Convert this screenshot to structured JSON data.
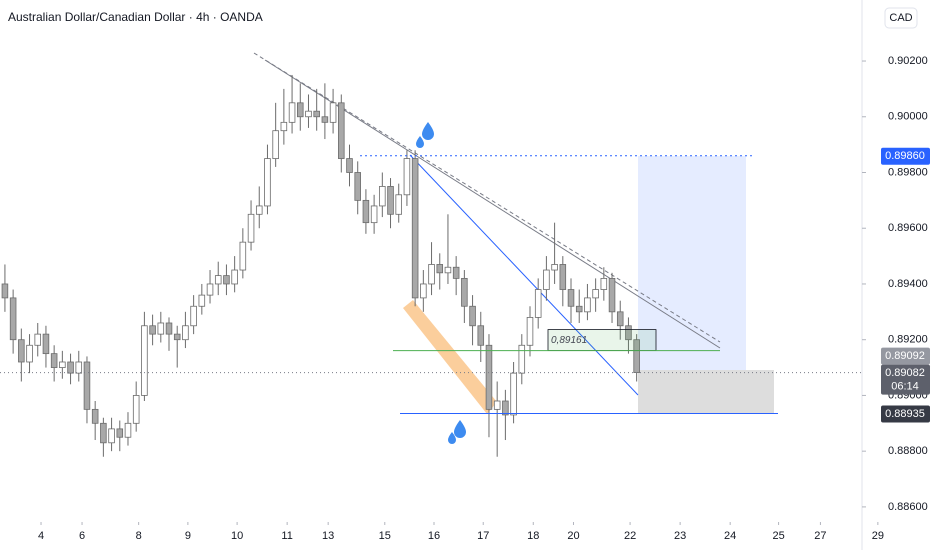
{
  "chart_data": {
    "type": "candlestick",
    "title": "Australian Dollar/Canadian Dollar · 4h · OANDA",
    "currency": "CAD",
    "up_color": "#ffffff",
    "down_color": "#a8a8a8",
    "wick_color": "#6b6b6b",
    "grid": false,
    "ylim": [
      0.88553,
      0.90419
    ],
    "yticks": [
      {
        "value": 0.902,
        "label": "0.90200"
      },
      {
        "value": 0.9,
        "label": "0.90000"
      },
      {
        "value": 0.898,
        "label": "0.89800"
      },
      {
        "value": 0.896,
        "label": "0.89600"
      },
      {
        "value": 0.894,
        "label": "0.89400"
      },
      {
        "value": 0.892,
        "label": "0.89200"
      },
      {
        "value": 0.89,
        "label": "0.89000"
      },
      {
        "value": 0.888,
        "label": "0.88800"
      },
      {
        "value": 0.886,
        "label": "0.88600"
      }
    ],
    "xlim": [
      -0.6,
      113
    ],
    "xticks": [
      {
        "value": 4.4,
        "label": "4"
      },
      {
        "value": 9.4,
        "label": "6"
      },
      {
        "value": 16.3,
        "label": "8"
      },
      {
        "value": 22.3,
        "label": "9"
      },
      {
        "value": 28.3,
        "label": "10"
      },
      {
        "value": 34.4,
        "label": "11"
      },
      {
        "value": 39.4,
        "label": "13"
      },
      {
        "value": 46.3,
        "label": "15"
      },
      {
        "value": 52.3,
        "label": "16"
      },
      {
        "value": 58.3,
        "label": "17"
      },
      {
        "value": 64.4,
        "label": "18"
      },
      {
        "value": 69.3,
        "label": "20"
      },
      {
        "value": 76.2,
        "label": "22"
      },
      {
        "value": 82.3,
        "label": "23"
      },
      {
        "value": 88.4,
        "label": "24"
      },
      {
        "value": 94.3,
        "label": "25"
      },
      {
        "value": 99.4,
        "label": "27"
      },
      {
        "value": 106.4,
        "label": "29"
      }
    ],
    "candles": [
      [
        0.894,
        0.8947,
        0.893,
        0.8935
      ],
      [
        0.8935,
        0.8938,
        0.8915,
        0.892
      ],
      [
        0.892,
        0.8924,
        0.8905,
        0.8912
      ],
      [
        0.8912,
        0.8922,
        0.8908,
        0.8918
      ],
      [
        0.8918,
        0.8926,
        0.8914,
        0.8922
      ],
      [
        0.8922,
        0.8925,
        0.891,
        0.8915
      ],
      [
        0.8915,
        0.8918,
        0.8905,
        0.891
      ],
      [
        0.891,
        0.8916,
        0.8906,
        0.8912
      ],
      [
        0.8912,
        0.8915,
        0.8904,
        0.8908
      ],
      [
        0.8908,
        0.8916,
        0.8905,
        0.8912
      ],
      [
        0.8912,
        0.8914,
        0.889,
        0.8895
      ],
      [
        0.8895,
        0.8898,
        0.8884,
        0.889
      ],
      [
        0.889,
        0.8892,
        0.8878,
        0.8883
      ],
      [
        0.8883,
        0.8892,
        0.888,
        0.8888
      ],
      [
        0.8888,
        0.8891,
        0.888,
        0.8885
      ],
      [
        0.8885,
        0.8894,
        0.8882,
        0.889
      ],
      [
        0.889,
        0.8905,
        0.8887,
        0.89
      ],
      [
        0.89,
        0.893,
        0.8898,
        0.8925
      ],
      [
        0.8925,
        0.8929,
        0.8918,
        0.8922
      ],
      [
        0.8922,
        0.893,
        0.8919,
        0.8926
      ],
      [
        0.8926,
        0.8928,
        0.8916,
        0.8922
      ],
      [
        0.8922,
        0.8925,
        0.891,
        0.892
      ],
      [
        0.892,
        0.893,
        0.8917,
        0.8925
      ],
      [
        0.8925,
        0.8936,
        0.8922,
        0.8932
      ],
      [
        0.8932,
        0.894,
        0.8929,
        0.8936
      ],
      [
        0.8936,
        0.8945,
        0.8933,
        0.894
      ],
      [
        0.894,
        0.8948,
        0.8936,
        0.8943
      ],
      [
        0.8943,
        0.8947,
        0.8936,
        0.894
      ],
      [
        0.894,
        0.895,
        0.8937,
        0.8945
      ],
      [
        0.8945,
        0.896,
        0.8942,
        0.8955
      ],
      [
        0.8955,
        0.897,
        0.8952,
        0.8965
      ],
      [
        0.8965,
        0.8975,
        0.896,
        0.8968
      ],
      [
        0.8968,
        0.899,
        0.8965,
        0.8985
      ],
      [
        0.8985,
        0.9005,
        0.8982,
        0.8995
      ],
      [
        0.8995,
        0.901,
        0.899,
        0.8998
      ],
      [
        0.8998,
        0.9015,
        0.8994,
        0.9005
      ],
      [
        0.9005,
        0.9012,
        0.8995,
        0.9
      ],
      [
        0.9,
        0.9008,
        0.8996,
        0.9002
      ],
      [
        0.9002,
        0.901,
        0.8995,
        0.9
      ],
      [
        0.9,
        0.9012,
        0.8992,
        0.8998
      ],
      [
        0.8998,
        0.901,
        0.8994,
        0.9005
      ],
      [
        0.9005,
        0.9008,
        0.898,
        0.8985
      ],
      [
        0.8985,
        0.899,
        0.8975,
        0.898
      ],
      [
        0.898,
        0.8984,
        0.8965,
        0.897
      ],
      [
        0.897,
        0.8974,
        0.8958,
        0.8962
      ],
      [
        0.8962,
        0.8972,
        0.8958,
        0.8968
      ],
      [
        0.8968,
        0.898,
        0.8964,
        0.8975
      ],
      [
        0.8975,
        0.8978,
        0.896,
        0.8965
      ],
      [
        0.8965,
        0.8976,
        0.8962,
        0.8972
      ],
      [
        0.8972,
        0.8988,
        0.8968,
        0.8985
      ],
      [
        0.8985,
        0.8988,
        0.8932,
        0.8935
      ],
      [
        0.8935,
        0.8945,
        0.893,
        0.894
      ],
      [
        0.894,
        0.8955,
        0.8936,
        0.8947
      ],
      [
        0.8947,
        0.8951,
        0.8938,
        0.8944
      ],
      [
        0.8944,
        0.8965,
        0.894,
        0.8946
      ],
      [
        0.8946,
        0.895,
        0.8936,
        0.8942
      ],
      [
        0.8942,
        0.8945,
        0.8926,
        0.8932
      ],
      [
        0.8932,
        0.8936,
        0.8918,
        0.8925
      ],
      [
        0.8925,
        0.893,
        0.8912,
        0.8918
      ],
      [
        0.8918,
        0.8922,
        0.8885,
        0.8895
      ],
      [
        0.8895,
        0.8905,
        0.8878,
        0.8898
      ],
      [
        0.8898,
        0.8902,
        0.8884,
        0.8893
      ],
      [
        0.8893,
        0.8912,
        0.889,
        0.8908
      ],
      [
        0.8908,
        0.8922,
        0.8904,
        0.8918
      ],
      [
        0.8918,
        0.8932,
        0.8914,
        0.8928
      ],
      [
        0.8928,
        0.8942,
        0.8924,
        0.8938
      ],
      [
        0.8938,
        0.895,
        0.8934,
        0.8945
      ],
      [
        0.8945,
        0.8962,
        0.894,
        0.8947
      ],
      [
        0.8947,
        0.895,
        0.8932,
        0.8938
      ],
      [
        0.8938,
        0.8942,
        0.8926,
        0.8932
      ],
      [
        0.8932,
        0.8938,
        0.8926,
        0.893
      ],
      [
        0.893,
        0.894,
        0.8927,
        0.8935
      ],
      [
        0.8935,
        0.8942,
        0.893,
        0.8938
      ],
      [
        0.8938,
        0.8946,
        0.8934,
        0.8942
      ],
      [
        0.8942,
        0.8944,
        0.8926,
        0.893
      ],
      [
        0.893,
        0.8934,
        0.892,
        0.8925
      ],
      [
        0.8925,
        0.8928,
        0.8915,
        0.892
      ],
      [
        0.892,
        0.8922,
        0.8905,
        0.89082
      ]
    ],
    "box_level": {
      "value": 0.89161,
      "label": "0,89161"
    },
    "price_labels": [
      {
        "value": 0.8986,
        "label": "0.89860",
        "color": "#2962ff"
      },
      {
        "value": 0.89092,
        "color": "#9598a1"
      },
      {
        "value": 0.89082,
        "color": "#5d606b"
      },
      {
        "value": 0.88935,
        "color": "#363a45"
      }
    ],
    "countdown": "06:14"
  }
}
